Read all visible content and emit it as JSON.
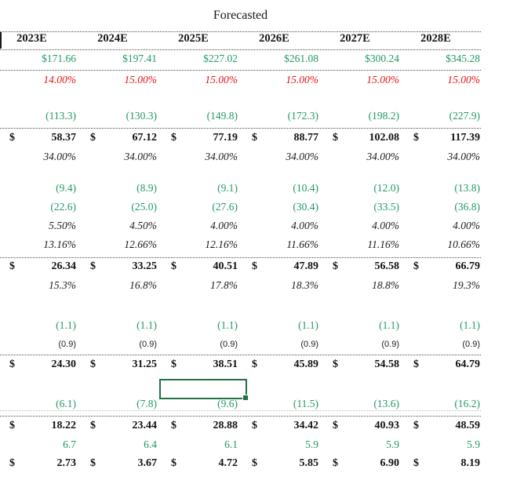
{
  "title": "Forecasted",
  "columns": [
    "2023E",
    "2024E",
    "2025E",
    "2026E",
    "2027E",
    "2028E"
  ],
  "dollar_sign": "$",
  "colors": {
    "green_text": "#219a61",
    "red_text": "#e31212",
    "selection_border": "#217346",
    "body_text": "#141414"
  },
  "rows": [
    {
      "style": "green",
      "dollar": false,
      "values": [
        "$171.66",
        "$197.41",
        "$227.02",
        "$261.08",
        "$300.24",
        "$345.28"
      ]
    },
    {
      "style": "red-italic",
      "dollar": false,
      "values": [
        "14.00%",
        "15.00%",
        "15.00%",
        "15.00%",
        "15.00%",
        "15.00%"
      ]
    },
    {
      "style": "green",
      "dollar": false,
      "values": [
        "(113.3)",
        "(130.3)",
        "(149.8)",
        "(172.3)",
        "(198.2)",
        "(227.9)"
      ]
    },
    {
      "style": "bold-dollar",
      "dollar": true,
      "values": [
        "58.37",
        "67.12",
        "77.19",
        "88.77",
        "102.08",
        "117.39"
      ]
    },
    {
      "style": "italic",
      "dollar": false,
      "values": [
        "34.00%",
        "34.00%",
        "34.00%",
        "34.00%",
        "34.00%",
        "34.00%"
      ]
    },
    {
      "style": "green",
      "dollar": false,
      "values": [
        "(9.4)",
        "(8.9)",
        "(9.1)",
        "(10.4)",
        "(12.0)",
        "(13.8)"
      ]
    },
    {
      "style": "green",
      "dollar": false,
      "values": [
        "(22.6)",
        "(25.0)",
        "(27.6)",
        "(30.4)",
        "(33.5)",
        "(36.8)"
      ]
    },
    {
      "style": "italic",
      "dollar": false,
      "values": [
        "5.50%",
        "4.50%",
        "4.00%",
        "4.00%",
        "4.00%",
        "4.00%"
      ]
    },
    {
      "style": "italic",
      "dollar": false,
      "values": [
        "13.16%",
        "12.66%",
        "12.16%",
        "11.66%",
        "11.16%",
        "10.66%"
      ]
    },
    {
      "style": "bold-dollar",
      "dollar": true,
      "values": [
        "26.34",
        "33.25",
        "40.51",
        "47.89",
        "56.58",
        "66.79"
      ]
    },
    {
      "style": "italic",
      "dollar": false,
      "values": [
        "15.3%",
        "16.8%",
        "17.8%",
        "18.3%",
        "18.8%",
        "19.3%"
      ]
    },
    {
      "style": "green",
      "dollar": false,
      "values": [
        "(1.1)",
        "(1.1)",
        "(1.1)",
        "(1.1)",
        "(1.1)",
        "(1.1)"
      ]
    },
    {
      "style": "small",
      "dollar": false,
      "values": [
        "(0.9)",
        "(0.9)",
        "(0.9)",
        "(0.9)",
        "(0.9)",
        "(0.9)"
      ]
    },
    {
      "style": "bold-dollar",
      "dollar": true,
      "values": [
        "24.30",
        "31.25",
        "38.51",
        "45.89",
        "54.58",
        "64.79"
      ]
    },
    {
      "style": "green",
      "dollar": false,
      "values": [
        "(6.1)",
        "(7.8)",
        "(9.6)",
        "(11.5)",
        "(13.6)",
        "(16.2)"
      ]
    },
    {
      "style": "bold-dollar",
      "dollar": true,
      "values": [
        "18.22",
        "23.44",
        "28.88",
        "34.42",
        "40.93",
        "48.59"
      ]
    },
    {
      "style": "green",
      "dollar": false,
      "values": [
        "6.7",
        "6.4",
        "6.1",
        "5.9",
        "5.9",
        "5.9"
      ]
    },
    {
      "style": "bold-dollar",
      "dollar": true,
      "values": [
        "2.73",
        "3.67",
        "4.72",
        "5.85",
        "6.90",
        "8.19"
      ]
    }
  ]
}
